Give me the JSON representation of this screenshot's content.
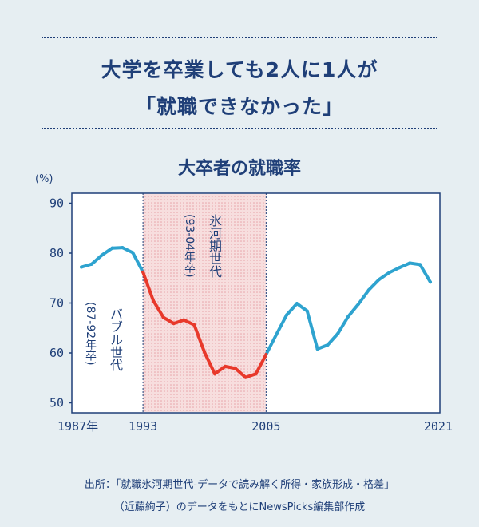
{
  "header": {
    "line1": "大学を卒業しても2人に1人が",
    "line2": "「就職できなかった」"
  },
  "chart_data": {
    "type": "line",
    "title": "大卒者の就職率",
    "unit": "(%)",
    "ylim": [
      48,
      92
    ],
    "xlim": [
      1987,
      2021
    ],
    "y_ticks": [
      90,
      80,
      70,
      60,
      50
    ],
    "x_tick_labels": [
      {
        "x": 1987,
        "label": "1987年"
      },
      {
        "x": 1993,
        "label": "1993"
      },
      {
        "x": 2005,
        "label": "2005"
      },
      {
        "x": 2021,
        "label": "2021"
      }
    ],
    "x": [
      1987,
      1988,
      1989,
      1990,
      1991,
      1992,
      1993,
      1994,
      1995,
      1996,
      1997,
      1998,
      1999,
      2000,
      2001,
      2002,
      2003,
      2004,
      2005,
      2006,
      2007,
      2008,
      2009,
      2010,
      2011,
      2012,
      2013,
      2014,
      2015,
      2016,
      2017,
      2018,
      2019,
      2020,
      2021
    ],
    "values": [
      77.2,
      77.8,
      79.6,
      81.0,
      81.1,
      80.1,
      76.2,
      70.5,
      67.1,
      65.9,
      66.6,
      65.6,
      60.1,
      55.8,
      57.3,
      56.9,
      55.1,
      55.8,
      59.7,
      63.7,
      67.6,
      69.9,
      68.4,
      60.8,
      61.6,
      63.9,
      67.3,
      69.8,
      72.6,
      74.7,
      76.1,
      77.1,
      78.0,
      77.7,
      74.2
    ],
    "series_colors": {
      "default": "#2ea3cf",
      "highlight": "#e8392b"
    },
    "highlight_range": [
      1993,
      2005
    ],
    "regions": [
      {
        "name": "氷河期世代",
        "sub": "(93-04年卒)",
        "from": 1993,
        "to": 2005
      }
    ],
    "annotations": [
      {
        "name": "バブル世代",
        "sub": "(87-92年卒)"
      }
    ]
  },
  "source": {
    "line1": "出所：「就職氷河期世代-データで読み解く所得・家族形成・格差」",
    "line2": "（近藤絢子）のデータをもとにNewsPicks編集部作成"
  }
}
